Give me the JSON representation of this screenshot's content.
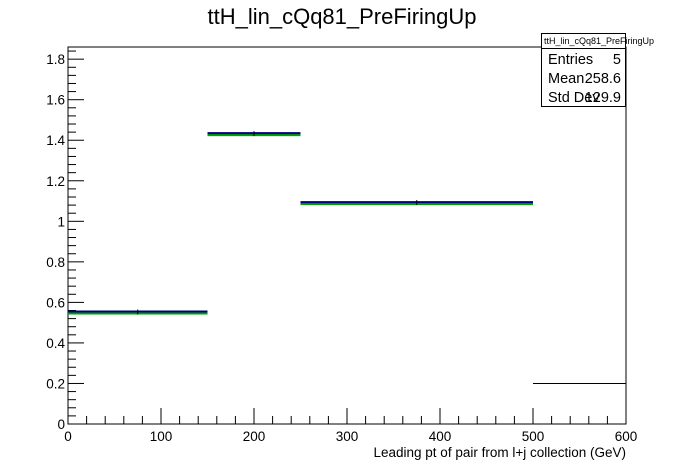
{
  "chart_data": {
    "type": "histogram",
    "title": "ttH_lin_cQq81_PreFiringUp",
    "xlabel": "Leading pt of pair from l+j collection (GeV)",
    "ylabel": "",
    "xlim": [
      0,
      600
    ],
    "ylim": [
      0,
      1.86
    ],
    "x_ticks": [
      "0",
      "100",
      "200",
      "300",
      "400",
      "500",
      "600"
    ],
    "y_ticks": [
      "0",
      "0.2",
      "0.4",
      "0.6",
      "0.8",
      "1",
      "1.2",
      "1.4",
      "1.6",
      "1.8"
    ],
    "bins": [
      {
        "x_low": 0,
        "x_high": 150,
        "value": 0.55
      },
      {
        "x_low": 150,
        "x_high": 250,
        "value": 1.43
      },
      {
        "x_low": 250,
        "x_high": 500,
        "value": 1.09
      },
      {
        "x_low": 500,
        "x_high": 600,
        "value": 0.2
      }
    ],
    "colors": {
      "line": "#000080",
      "band": "#00a000",
      "axis": "#000000"
    }
  },
  "stats": {
    "title": "ttH_lin_cQq81_PreFiringUp",
    "rows": [
      {
        "label": "Entries",
        "value": "5"
      },
      {
        "label": "Mean",
        "value": "258.6"
      },
      {
        "label": "Std Dev",
        "value": "129.9"
      }
    ]
  }
}
